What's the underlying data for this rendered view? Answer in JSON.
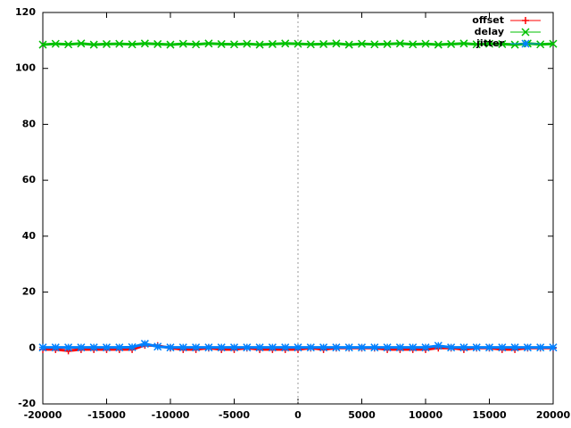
{
  "chart_data": {
    "type": "line",
    "x": [
      -20000,
      -19000,
      -18000,
      -17000,
      -16000,
      -15000,
      -14000,
      -13000,
      -12000,
      -11000,
      -10000,
      -9000,
      -8000,
      -7000,
      -6000,
      -5000,
      -4000,
      -3000,
      -2000,
      -1000,
      0,
      1000,
      2000,
      3000,
      4000,
      5000,
      6000,
      7000,
      8000,
      9000,
      10000,
      11000,
      12000,
      13000,
      14000,
      15000,
      16000,
      17000,
      18000,
      19000,
      20000
    ],
    "series": [
      {
        "name": "offset",
        "color": "#ff0000",
        "marker": "plus",
        "values": [
          -0.5,
          -0.5,
          -1,
          -0.5,
          -0.5,
          -0.5,
          -0.5,
          -0.5,
          1,
          0.8,
          0,
          -0.5,
          -0.5,
          0,
          -0.5,
          -0.5,
          0,
          -0.5,
          -0.5,
          -0.5,
          -0.5,
          0,
          -0.5,
          0,
          0,
          0,
          0,
          -0.5,
          -0.5,
          -0.5,
          -0.5,
          0,
          0,
          -0.5,
          0,
          0,
          -0.5,
          -0.5,
          0,
          0,
          0
        ]
      },
      {
        "name": "delay",
        "color": "#00c000",
        "marker": "cross",
        "values": [
          108.5,
          108.8,
          108.6,
          108.9,
          108.5,
          108.7,
          108.8,
          108.6,
          108.9,
          108.7,
          108.5,
          108.8,
          108.6,
          108.9,
          108.7,
          108.6,
          108.8,
          108.5,
          108.7,
          108.9,
          108.8,
          108.6,
          108.7,
          108.9,
          108.5,
          108.8,
          108.6,
          108.7,
          108.9,
          108.6,
          108.8,
          108.5,
          108.7,
          108.9,
          108.6,
          108.8,
          108.7,
          108.5,
          108.9,
          108.6,
          108.8
        ]
      },
      {
        "name": "jitter",
        "color": "#0080ff",
        "marker": "star",
        "values": [
          0.2,
          0.2,
          0.2,
          0.2,
          0.2,
          0.2,
          0.2,
          0.3,
          1.5,
          0.5,
          0.2,
          0.2,
          0.2,
          0.2,
          0.2,
          0.2,
          0.2,
          0.2,
          0.2,
          0.2,
          0.2,
          0.2,
          0.2,
          0.2,
          0.2,
          0.2,
          0.2,
          0.2,
          0.2,
          0.2,
          0.2,
          0.8,
          0.2,
          0.2,
          0.2,
          0.2,
          0.2,
          0.2,
          0.2,
          0.2,
          0.2
        ]
      }
    ],
    "xlim": [
      -20000,
      20000
    ],
    "xticks": [
      -20000,
      -15000,
      -10000,
      -5000,
      0,
      5000,
      10000,
      15000,
      20000
    ],
    "ylim": [
      -20,
      120
    ],
    "yticks": [
      -20,
      0,
      20,
      40,
      60,
      80,
      100,
      120
    ],
    "x_zeroaxis": true,
    "legend": "top-right"
  }
}
